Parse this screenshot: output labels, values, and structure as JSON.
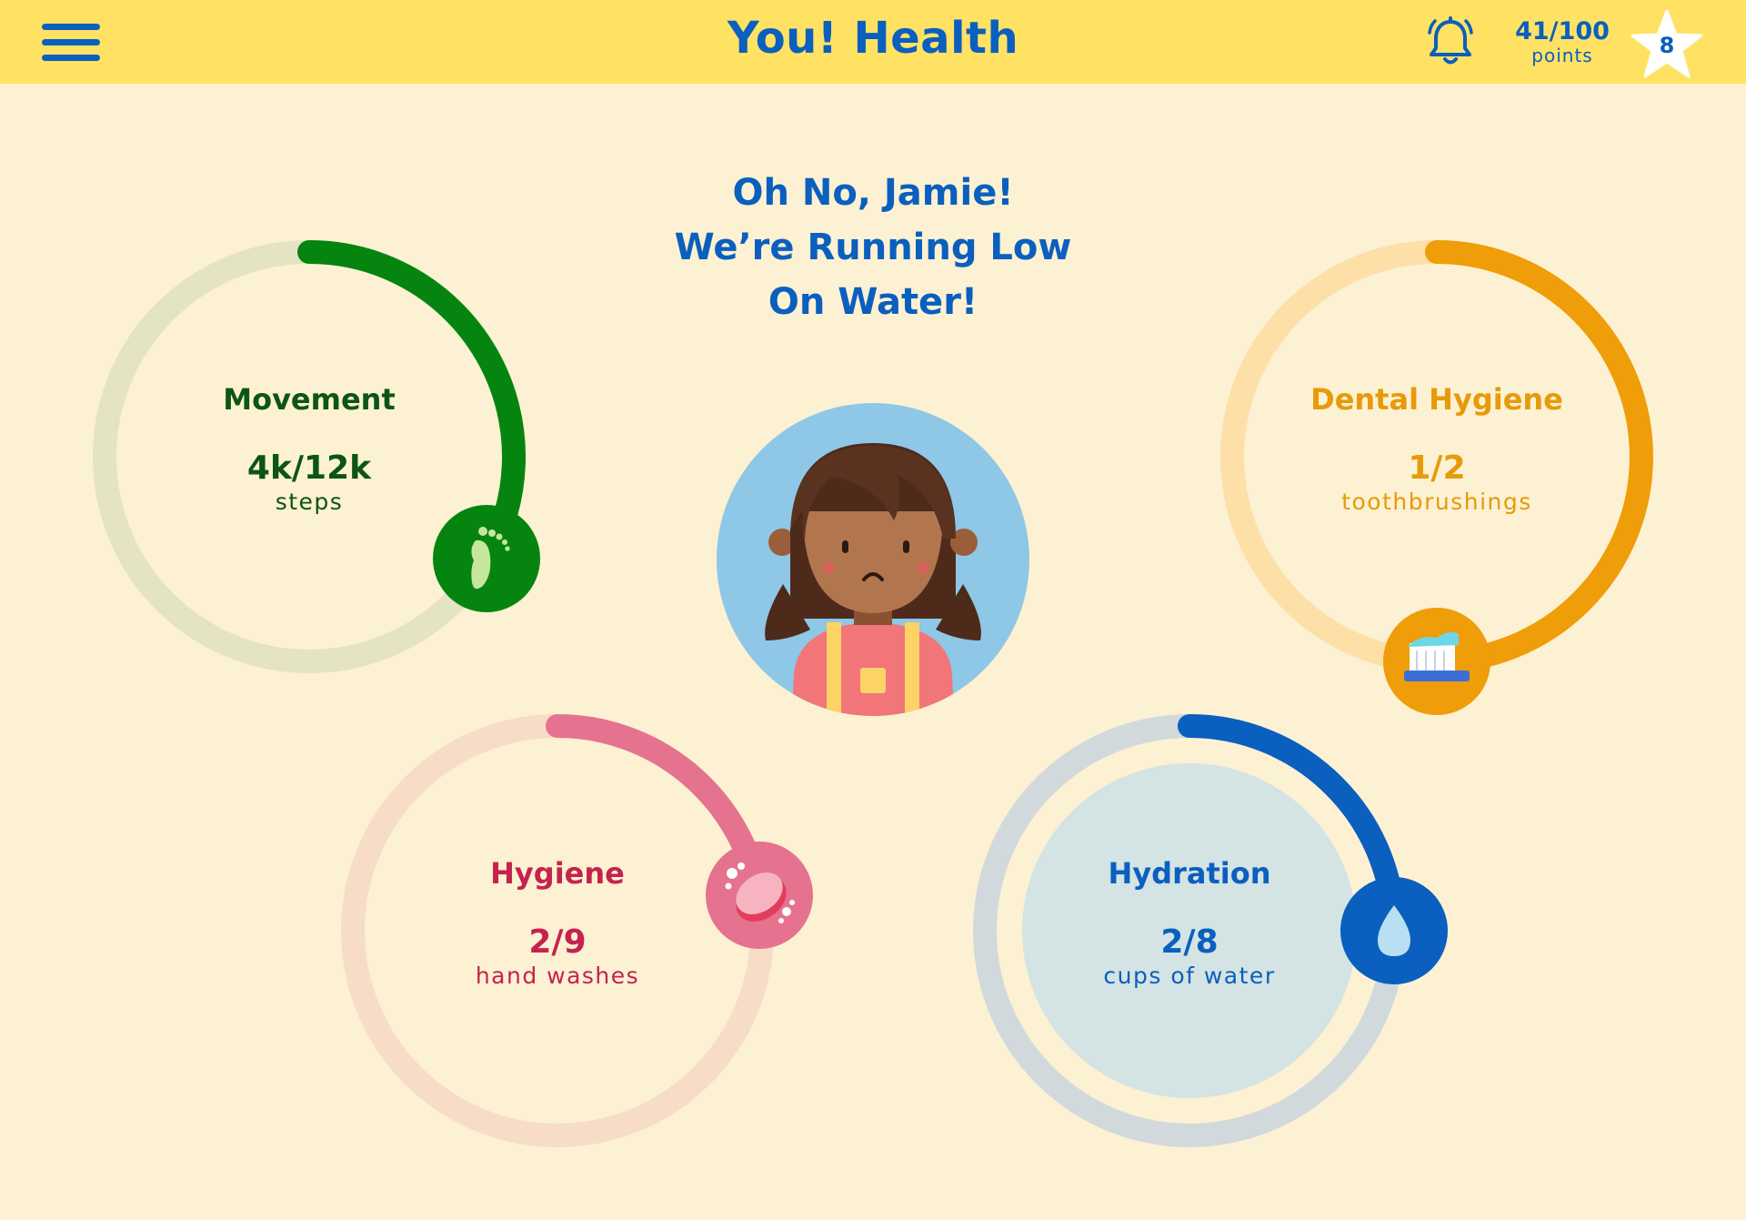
{
  "header": {
    "title": "You! Health",
    "menu_icon": "hamburger-menu-icon",
    "notification_icon": "bell-icon",
    "points_value": "41/100",
    "points_label": "points",
    "star_count": "8",
    "star_icon": "star-icon"
  },
  "headline": {
    "lines": [
      "Oh No, Jamie!",
      "We’re Running Low",
      "On Water!"
    ]
  },
  "avatar": {
    "icon": "sad-girl-avatar",
    "mood": "sad"
  },
  "stats": [
    {
      "id": "movement",
      "title": "Movement",
      "value": "4k/12k",
      "unit": "steps",
      "progress": 0.333,
      "color": "#05850f",
      "track_color": "#e4e3c4",
      "text_color": "#0c5513",
      "icon": "footprint-icon"
    },
    {
      "id": "dental",
      "title": "Dental Hygiene",
      "value": "1/2",
      "unit": "toothbrushings",
      "progress": 0.5,
      "color": "#ef9d08",
      "track_color": "#fddfa8",
      "text_color": "#e79a0a",
      "icon": "toothbrush-icon"
    },
    {
      "id": "hygiene",
      "title": "Hygiene",
      "value": "2/9",
      "unit": "hand washes",
      "progress": 0.222,
      "color": "#e5728f",
      "track_color": "#f7dcc7",
      "text_color": "#c5234e",
      "icon": "soap-icon"
    },
    {
      "id": "hydration",
      "title": "Hydration",
      "value": "2/8",
      "unit": "cups of water",
      "progress": 0.25,
      "color": "#0a5fbf",
      "track_color": "#d2d9dc",
      "text_color": "#0a5fbf",
      "icon": "water-drop-icon"
    }
  ]
}
